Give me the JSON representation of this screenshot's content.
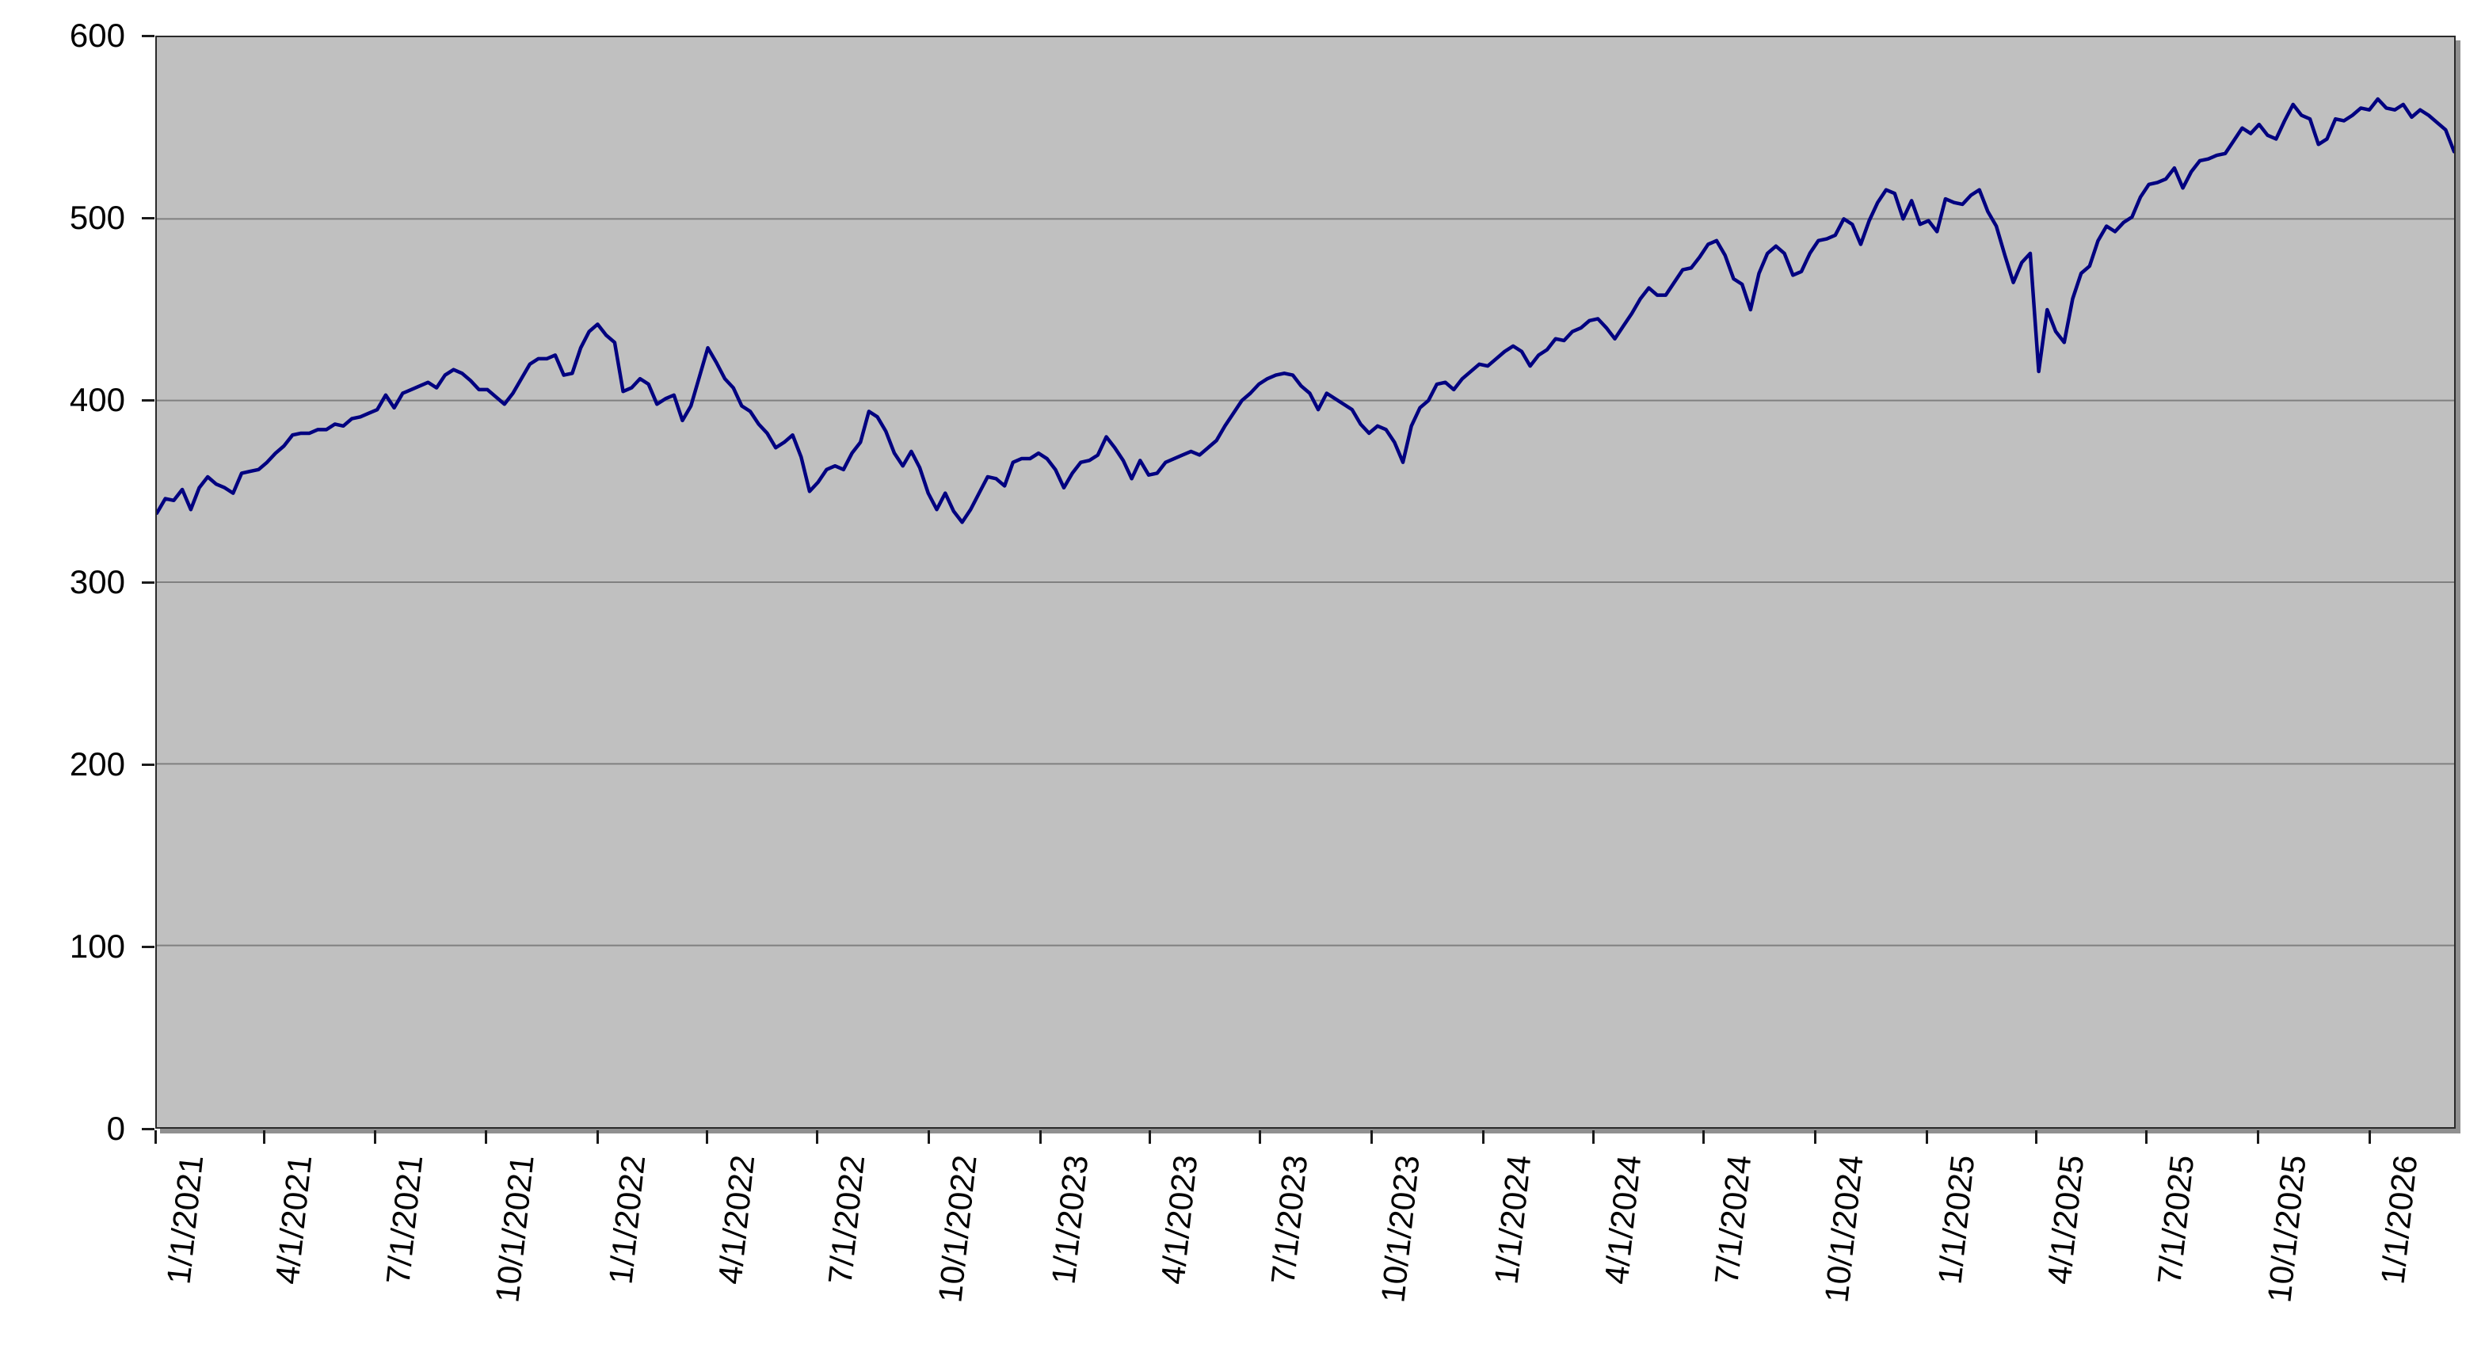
{
  "chart_data": {
    "type": "line",
    "title": "",
    "xlabel": "",
    "ylabel": "",
    "legend": "none",
    "grid": "horizontal",
    "plot_background_color": "#c0c0c0",
    "gridline_color": "#808080",
    "axis_color": "#1a1a1a",
    "ylim": [
      0,
      600
    ],
    "y_ticks": [
      0,
      100,
      200,
      300,
      400,
      500,
      600
    ],
    "y_tick_labels": [
      "0",
      "100",
      "200",
      "300",
      "400",
      "500",
      "600"
    ],
    "x_tick_labels": [
      "1/1/2021",
      "4/1/2021",
      "7/1/2021",
      "10/1/2021",
      "1/1/2022",
      "4/1/2022",
      "7/1/2022",
      "10/1/2022",
      "1/1/2023",
      "4/1/2023",
      "7/1/2023",
      "10/1/2023",
      "1/1/2024",
      "4/1/2024",
      "7/1/2024",
      "10/1/2024",
      "1/1/2025",
      "4/1/2025",
      "7/1/2025",
      "10/1/2025",
      "1/1/2026"
    ],
    "x_tick_day_offsets": [
      0,
      90,
      181,
      273,
      365,
      455,
      546,
      638,
      730,
      820,
      911,
      1003,
      1095,
      1186,
      1277,
      1369,
      1461,
      1551,
      1642,
      1734,
      1826
    ],
    "x_total_days": 1897,
    "series": [
      {
        "color": "#000080",
        "start_date": "2021-01-01",
        "interval_days": 7,
        "values": [
          338,
          346,
          345,
          351,
          340,
          352,
          358,
          354,
          352,
          349,
          360,
          361,
          362,
          366,
          371,
          375,
          381,
          382,
          382,
          384,
          384,
          387,
          386,
          390,
          391,
          393,
          395,
          403,
          396,
          404,
          406,
          408,
          410,
          407,
          414,
          417,
          415,
          411,
          406,
          406,
          402,
          398,
          404,
          412,
          420,
          423,
          423,
          425,
          414,
          415,
          429,
          438,
          442,
          436,
          432,
          405,
          407,
          412,
          409,
          398,
          401,
          403,
          389,
          397,
          413,
          429,
          421,
          412,
          407,
          397,
          394,
          387,
          382,
          374,
          377,
          381,
          369,
          350,
          355,
          362,
          364,
          362,
          371,
          377,
          394,
          391,
          383,
          371,
          364,
          372,
          363,
          349,
          340,
          349,
          339,
          333,
          340,
          349,
          358,
          357,
          353,
          366,
          368,
          368,
          371,
          368,
          362,
          352,
          360,
          366,
          367,
          370,
          380,
          374,
          367,
          357,
          367,
          359,
          360,
          366,
          368,
          370,
          372,
          370,
          374,
          378,
          386,
          393,
          400,
          404,
          409,
          412,
          414,
          415,
          414,
          408,
          404,
          395,
          404,
          401,
          398,
          395,
          387,
          382,
          386,
          384,
          377,
          366,
          386,
          396,
          400,
          409,
          410,
          406,
          412,
          416,
          420,
          419,
          423,
          427,
          430,
          427,
          419,
          425,
          428,
          434,
          433,
          438,
          440,
          444,
          445,
          440,
          434,
          441,
          448,
          456,
          462,
          458,
          458,
          465,
          472,
          473,
          479,
          486,
          488,
          480,
          467,
          464,
          450,
          470,
          481,
          485,
          481,
          469,
          471,
          481,
          488,
          489,
          491,
          500,
          497,
          486,
          499,
          509,
          516,
          514,
          500,
          510,
          497,
          499,
          493,
          511,
          509,
          508,
          513,
          516,
          504,
          496,
          480,
          465,
          476,
          481,
          416,
          450,
          438,
          432,
          456,
          470,
          474,
          488,
          496,
          493,
          498,
          501,
          512,
          519,
          520,
          522,
          528,
          517,
          526,
          532,
          533,
          535,
          536,
          543,
          550,
          547,
          552,
          546,
          544,
          554,
          563,
          557,
          555,
          541,
          544,
          555,
          554,
          557,
          561,
          560,
          566,
          561,
          560,
          563,
          556,
          560,
          557,
          553,
          549,
          537
        ]
      }
    ]
  }
}
